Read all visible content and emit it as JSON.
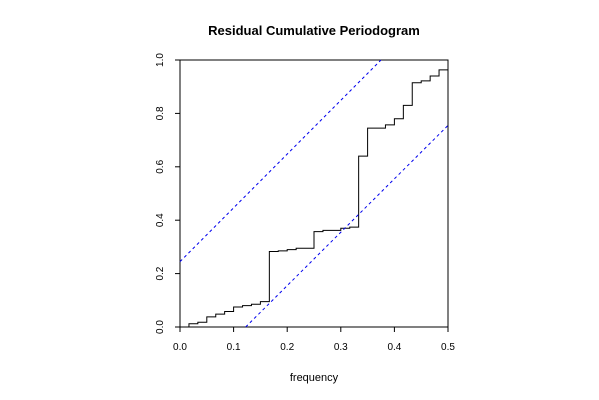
{
  "chart_data": {
    "type": "line",
    "title": "Residual Cumulative Periodogram",
    "xlabel": "frequency",
    "ylabel": "",
    "xlim": [
      0,
      0.5
    ],
    "ylim": [
      0,
      1
    ],
    "grid": false,
    "x_ticks": [
      "0.0",
      "0.1",
      "0.2",
      "0.3",
      "0.4",
      "0.5"
    ],
    "y_ticks": [
      "0.0",
      "0.2",
      "0.4",
      "0.6",
      "0.8",
      "1.0"
    ],
    "series": [
      {
        "style": "step",
        "color": "#000000",
        "points": [
          [
            0.0,
            0.0
          ],
          [
            0.0167,
            0.012
          ],
          [
            0.0333,
            0.018
          ],
          [
            0.05,
            0.038
          ],
          [
            0.0667,
            0.048
          ],
          [
            0.0833,
            0.058
          ],
          [
            0.1,
            0.075
          ],
          [
            0.1167,
            0.08
          ],
          [
            0.1333,
            0.085
          ],
          [
            0.15,
            0.095
          ],
          [
            0.1667,
            0.283
          ],
          [
            0.1833,
            0.285
          ],
          [
            0.2,
            0.29
          ],
          [
            0.2167,
            0.295
          ],
          [
            0.25,
            0.357
          ],
          [
            0.2667,
            0.362
          ],
          [
            0.3,
            0.37
          ],
          [
            0.3167,
            0.374
          ],
          [
            0.3333,
            0.64
          ],
          [
            0.35,
            0.745
          ],
          [
            0.3833,
            0.757
          ],
          [
            0.4,
            0.78
          ],
          [
            0.4167,
            0.83
          ],
          [
            0.4333,
            0.915
          ],
          [
            0.45,
            0.922
          ],
          [
            0.4667,
            0.94
          ],
          [
            0.4833,
            0.963
          ],
          [
            0.5,
            1.0
          ]
        ]
      },
      {
        "style": "dashed",
        "color": "#0000ee",
        "points": [
          [
            0.0,
            0.245
          ],
          [
            0.375,
            1.0
          ]
        ]
      },
      {
        "style": "dashed",
        "color": "#0000ee",
        "points": [
          [
            0.1225,
            0.0
          ],
          [
            0.5,
            0.755
          ]
        ]
      }
    ]
  }
}
